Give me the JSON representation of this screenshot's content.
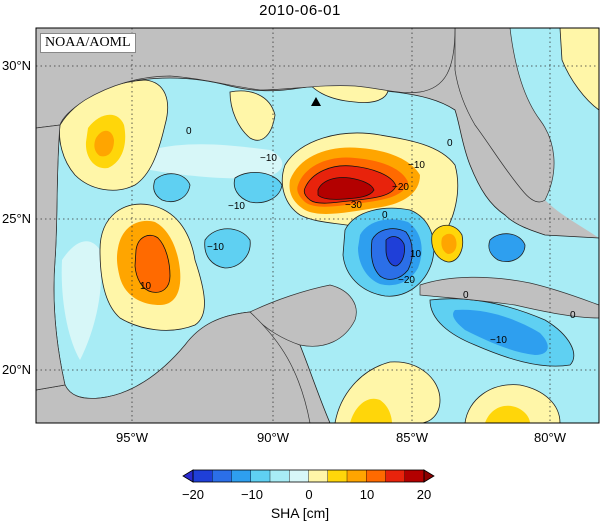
{
  "title": "2010-06-01",
  "credit": "NOAA/AOML",
  "lat_labels": [
    "30°N",
    "25°N",
    "20°N"
  ],
  "lon_labels": [
    "95°W",
    "90°W",
    "85°W",
    "80°W"
  ],
  "colorbar": {
    "ticks": [
      "−20",
      "−10",
      "0",
      "10",
      "20"
    ],
    "label": "SHA [cm]",
    "colors": [
      "#1f3fd8",
      "#2b6fe8",
      "#2e9fef",
      "#5fd0f2",
      "#a8ecf5",
      "#d7f7f8",
      "#fff6a8",
      "#ffd60a",
      "#ffa500",
      "#ff6a00",
      "#e8230c",
      "#b30000"
    ]
  },
  "contour_labels": [
    "0",
    "0",
    "0",
    "−10",
    "−10",
    "−10",
    "10",
    "−10",
    "−30",
    "−20",
    "10",
    "−20",
    "−10",
    "0",
    "0"
  ],
  "colors": {
    "land": "#c0c0c0",
    "grid": "#333333"
  }
}
